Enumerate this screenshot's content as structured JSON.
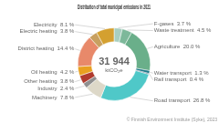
{
  "chart_data": {
    "type": "doughnut",
    "title": "Distribution of total municipal emissions in 2021",
    "categories": [
      "F-gases  3.7 %",
      "Waste treatment  4.5 %",
      "Agriculture  20.0 %",
      "Water transport  1.3 %",
      "Rail transport  0.4 %",
      "Road transport  26.8 %",
      "Machinery  7.8 %",
      "Industry  2.4 %",
      "Other heating  3.8 %",
      "Oil heating  4.2 %",
      "District heating  14.4 %",
      "Electric heating  3.8 %",
      "Electricity  8.1 %"
    ],
    "values": [
      3.7,
      4.5,
      20.0,
      1.3,
      0.4,
      26.8,
      7.8,
      2.4,
      3.8,
      4.2,
      14.4,
      3.8,
      8.1
    ],
    "colors": [
      "#a8cfc0",
      "#7db89a",
      "#6aaf8a",
      "#1e7a8a",
      "#1a3a5c",
      "#4fc8c8",
      "#ddd8c8",
      "#909090",
      "#b03a2e",
      "#e8a020",
      "#e8896a",
      "#c8a060",
      "#d4a030"
    ],
    "annotations": [
      "31 944",
      "ktCO₂e",
      "© Finnish Environment Institute (Syke), 2023"
    ]
  }
}
